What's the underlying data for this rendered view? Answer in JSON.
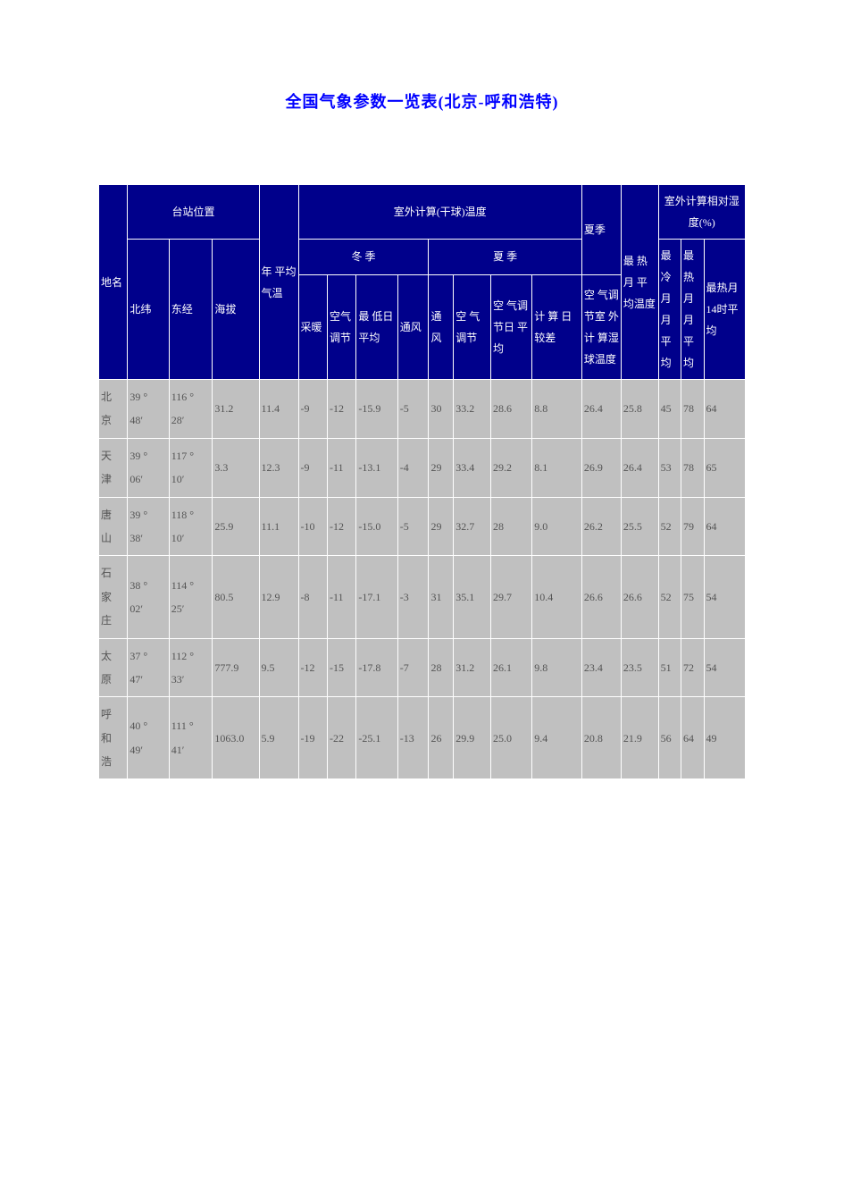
{
  "title": "全国气象参数一览表(北京-呼和浩特)",
  "header": {
    "station_position": "台站位置",
    "place_name": "地名",
    "latitude": "北纬",
    "longitude": "东经",
    "altitude": "海拔",
    "annual_avg_temp": "年 平均 气温",
    "outdoor_calc_temp": "室外计算(干球)温度",
    "winter": "冬 季",
    "summer": "夏 季",
    "heating": "采暖",
    "air_cond_winter": "空气调节",
    "lowest_daily_avg": "最 低日 平均",
    "ventilation_winter": "通风",
    "ventilation_summer": "通风",
    "air_cond_summer": "空 气调节",
    "air_cond_daily_avg": "空 气调 节日 平均",
    "calc_day_range": "计 算 日较差",
    "summer_season": "夏季",
    "air_cond_outdoor_wetbulb": "空 气调 节室 外计 算湿 球温度",
    "hottest_month_avg_temp": "最 热月 平均温度",
    "outdoor_calc_rh": "室外计算相对湿度(%)",
    "coldest_month_avg": "最冷月月平均",
    "hottest_month_avg": "最热月月平均",
    "hottest_month_14h_avg": "最热月14时平均"
  },
  "rows": [
    {
      "name": "北京",
      "lat": "39 °48′",
      "lon": "116 °28′",
      "alt": "31.2",
      "annual": "11.4",
      "heating": "-9",
      "ac_winter": "-12",
      "lowest": "-15.9",
      "vent_w": "-5",
      "vent_s": "30",
      "ac_summer": "33.2",
      "ac_daily": "28.6",
      "day_range": "8.8",
      "wetbulb": "26.4",
      "hot_temp": "25.8",
      "cold_rh": "45",
      "hot_rh": "78",
      "hot14_rh": "64"
    },
    {
      "name": "天津",
      "lat": "39 °06′",
      "lon": "117 °10′",
      "alt": "3.3",
      "annual": "12.3",
      "heating": "-9",
      "ac_winter": "-11",
      "lowest": "-13.1",
      "vent_w": "-4",
      "vent_s": "29",
      "ac_summer": "33.4",
      "ac_daily": "29.2",
      "day_range": "8.1",
      "wetbulb": "26.9",
      "hot_temp": "26.4",
      "cold_rh": "53",
      "hot_rh": "78",
      "hot14_rh": "65"
    },
    {
      "name": "唐山",
      "lat": "39 °38′",
      "lon": "118 °10′",
      "alt": "25.9",
      "annual": "11.1",
      "heating": "-10",
      "ac_winter": "-12",
      "lowest": "-15.0",
      "vent_w": "-5",
      "vent_s": "29",
      "ac_summer": "32.7",
      "ac_daily": "28",
      "day_range": "9.0",
      "wetbulb": "26.2",
      "hot_temp": "25.5",
      "cold_rh": "52",
      "hot_rh": "79",
      "hot14_rh": "64"
    },
    {
      "name": "石家庄",
      "lat": "38 °02′",
      "lon": "114 °25′",
      "alt": "80.5",
      "annual": "12.9",
      "heating": "-8",
      "ac_winter": "-11",
      "lowest": "-17.1",
      "vent_w": "-3",
      "vent_s": "31",
      "ac_summer": "35.1",
      "ac_daily": "29.7",
      "day_range": "10.4",
      "wetbulb": "26.6",
      "hot_temp": "26.6",
      "cold_rh": "52",
      "hot_rh": "75",
      "hot14_rh": "54"
    },
    {
      "name": "太原",
      "lat": "37 °47′",
      "lon": "112 °33′",
      "alt": "777.9",
      "annual": "9.5",
      "heating": "-12",
      "ac_winter": "-15",
      "lowest": "-17.8",
      "vent_w": "-7",
      "vent_s": "28",
      "ac_summer": "31.2",
      "ac_daily": "26.1",
      "day_range": "9.8",
      "wetbulb": "23.4",
      "hot_temp": "23.5",
      "cold_rh": "51",
      "hot_rh": "72",
      "hot14_rh": "54"
    },
    {
      "name": "呼和浩",
      "lat": "40 °49′",
      "lon": "111 °41′",
      "alt": "1063.0",
      "annual": "5.9",
      "heating": "-19",
      "ac_winter": "-22",
      "lowest": "-25.1",
      "vent_w": "-13",
      "vent_s": "26",
      "ac_summer": "29.9",
      "ac_daily": "25.0",
      "day_range": "9.4",
      "wetbulb": "20.8",
      "hot_temp": "21.9",
      "cold_rh": "56",
      "hot_rh": "64",
      "hot14_rh": "49"
    }
  ],
  "styles": {
    "header_bg": "#00008b",
    "header_text": "#ffffff",
    "cell_bg": "#c0c0c0",
    "cell_text": "#555555",
    "title_color": "#0000ff",
    "border_color": "#ffffff"
  }
}
